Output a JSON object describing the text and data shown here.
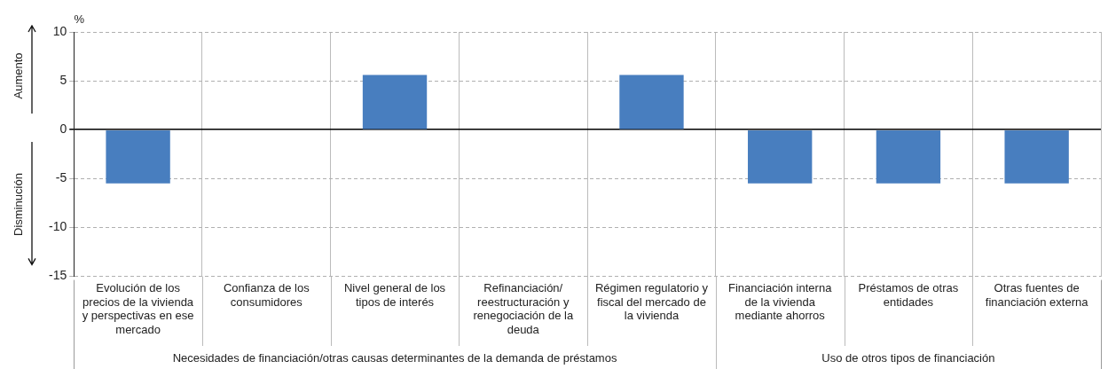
{
  "chart_data": {
    "type": "bar",
    "ylabel": "%",
    "categories": [
      "Evolución de los precios de la vivienda y perspectivas en ese mercado",
      "Confianza de los consumidores",
      "Nivel general de los tipos de interés",
      "Refinanciación/ reestructuración y renegociación de la deuda",
      "Régimen regulatorio y fiscal del mercado de la vivienda",
      "Financiación interna de la vivienda mediante ahorros",
      "Préstamos de otras entidades",
      "Otras fuentes de financiación externa"
    ],
    "values": [
      -5.5,
      0,
      5.6,
      0,
      5.6,
      -5.5,
      -5.5,
      -5.5
    ],
    "color": "#487ebf",
    "ylim": [
      -15,
      10
    ],
    "yticks": [
      -15,
      -10,
      -5,
      0,
      5,
      10
    ],
    "grid": true,
    "annotations": [
      "Aumento",
      "Disminución",
      "Necesidades de financiación/otras causas determinantes de la demanda de préstamos",
      "Uso de otros tipos de financiación"
    ]
  }
}
